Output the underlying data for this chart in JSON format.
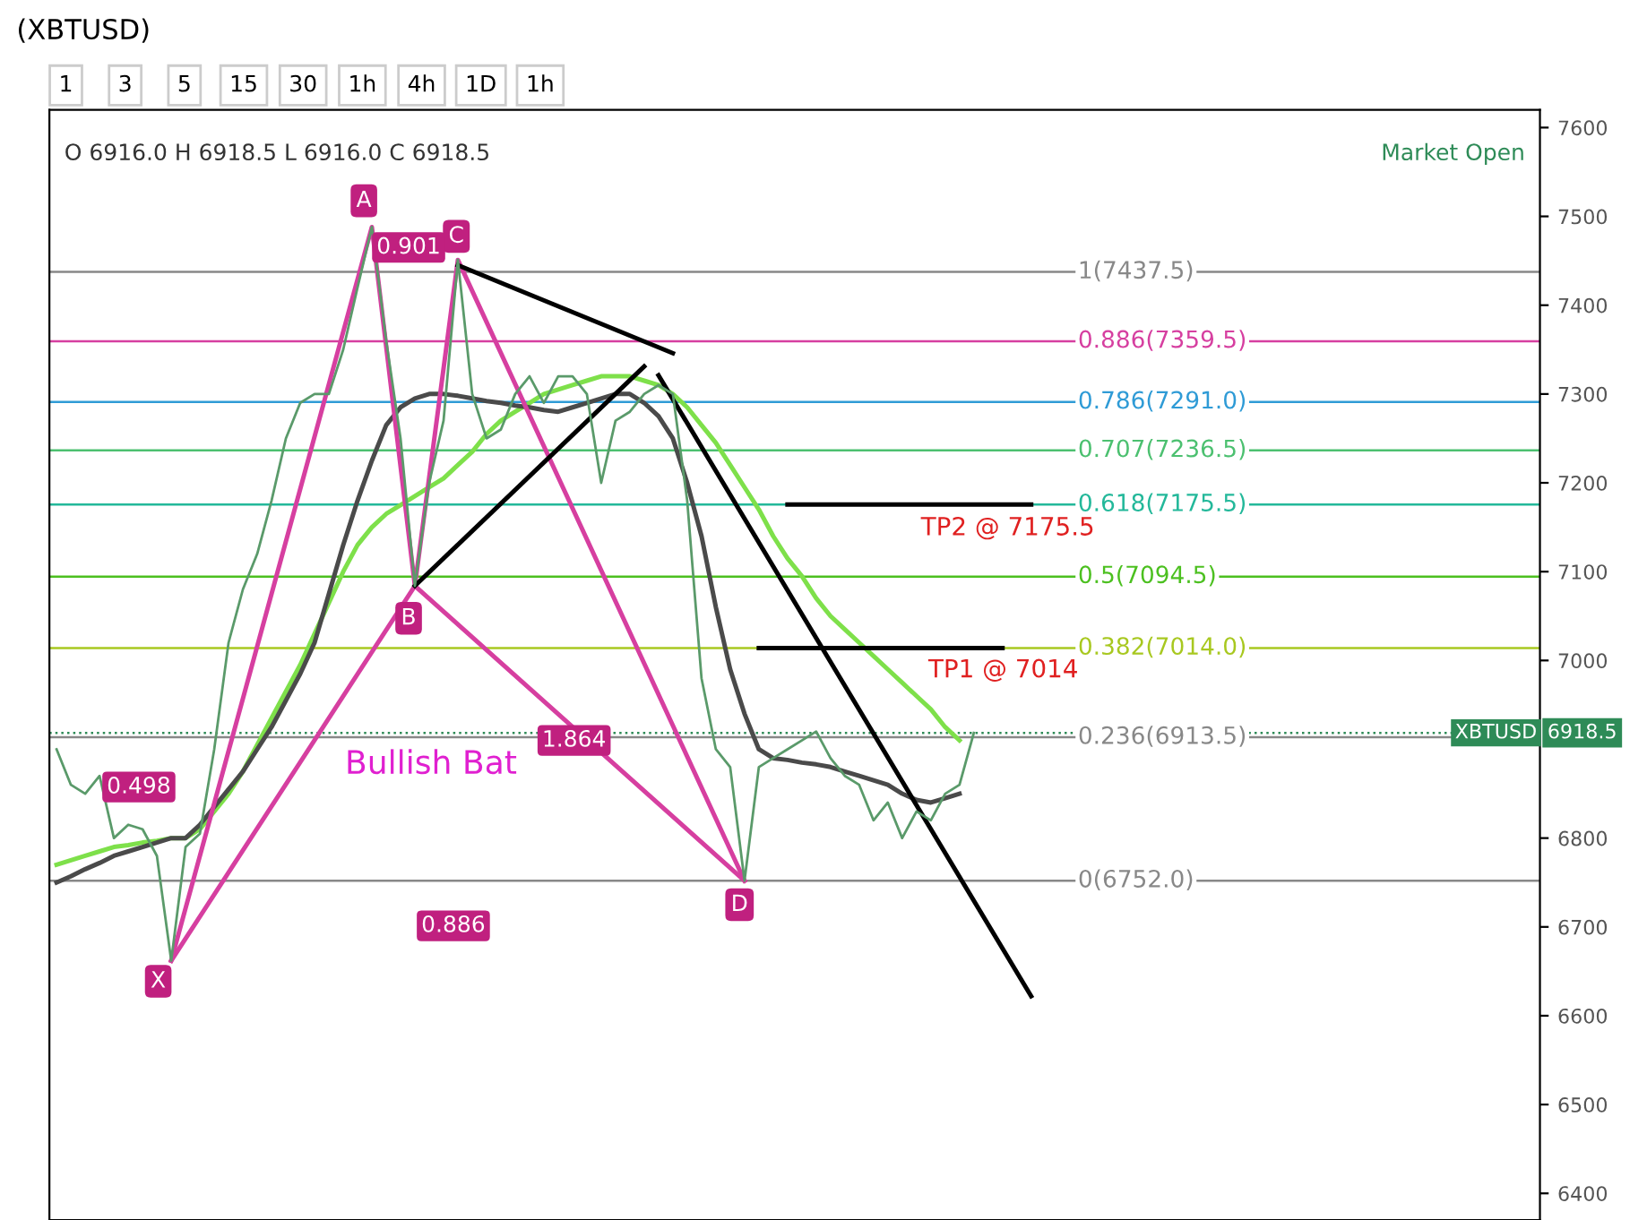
{
  "chart_data": {
    "type": "line",
    "title": "(XBTUSD)",
    "subtitle": "O 6916.0 H 6918.5 L 6916.0 C 6918.5",
    "categories": [
      null,
      null,
      null,
      null,
      null,
      null,
      null,
      null,
      null,
      null,
      null,
      null,
      null,
      null,
      null,
      null,
      null,
      null,
      null,
      null,
      null,
      null,
      null,
      null,
      null,
      null,
      null,
      null,
      null,
      null,
      null,
      null,
      null,
      null,
      null,
      null,
      null,
      null,
      null,
      null,
      null,
      null,
      null,
      null,
      null,
      null,
      null,
      null,
      null,
      null,
      null,
      null,
      null,
      null,
      null,
      null,
      null,
      null,
      null,
      null,
      null,
      null,
      null,
      null,
      null,
      null,
      null,
      null,
      null,
      null,
      null,
      null,
      null,
      null,
      null,
      null,
      null,
      null,
      null,
      null,
      null,
      null,
      null,
      null,
      null,
      null,
      null,
      null,
      null,
      null,
      null,
      null,
      null,
      null,
      null,
      null,
      null,
      null,
      null,
      null,
      null,
      null,
      null,
      null
    ],
    "ylim": [
      6370,
      7620
    ],
    "yticks": [
      6400,
      6500,
      6600,
      6700,
      6800,
      7000,
      7100,
      7200,
      7300,
      7400,
      7500,
      7600
    ],
    "tick_labels": "y",
    "grid": false,
    "legend": false,
    "marker": "none",
    "line_style": "solid",
    "series": [
      {
        "color": "#5a9a6a",
        "values": [
          6900,
          6860,
          6850,
          6870,
          6800,
          6815,
          6810,
          6780,
          6662,
          6790,
          6805,
          6900,
          7020,
          7080,
          7120,
          7180,
          7250,
          7290,
          7300,
          7300,
          7350,
          7420,
          7488,
          7360,
          7250,
          7084,
          7200,
          7270,
          7451,
          7300,
          7250,
          7260,
          7300,
          7320,
          7290,
          7320,
          7320,
          7300,
          7200,
          7270,
          7280,
          7300,
          7310,
          7300,
          7180,
          6980,
          6900,
          6880,
          6752,
          6880,
          6890,
          6900,
          6910,
          6920,
          6890,
          6870,
          6860,
          6820,
          6840,
          6800,
          6830,
          6820,
          6850,
          6860,
          6918.5,
          null,
          null,
          null,
          null,
          null,
          null,
          null,
          null,
          null,
          null,
          null,
          null,
          null,
          null,
          null,
          null,
          null,
          null,
          null,
          null,
          null,
          null,
          null,
          null,
          null,
          null,
          null,
          null,
          null,
          null,
          null,
          null,
          null,
          null,
          null,
          null,
          null,
          null,
          null
        ]
      },
      {
        "color": "#7ee04a",
        "values": [
          6770,
          6775,
          6780,
          6785,
          6790,
          6792,
          6795,
          6797,
          6800,
          6800,
          6810,
          6830,
          6850,
          6875,
          6905,
          6935,
          6965,
          6995,
          7030,
          7065,
          7100,
          7130,
          7150,
          7165,
          7175,
          7185,
          7195,
          7205,
          7220,
          7235,
          7255,
          7270,
          7280,
          7290,
          7300,
          7305,
          7310,
          7315,
          7320,
          7320,
          7320,
          7315,
          7310,
          7300,
          7285,
          7265,
          7245,
          7220,
          7195,
          7170,
          7140,
          7115,
          7095,
          7070,
          7050,
          7035,
          7020,
          7005,
          6990,
          6975,
          6960,
          6945,
          6925,
          6910,
          null,
          null,
          null,
          null,
          null,
          null,
          null,
          null,
          null,
          null,
          null,
          null,
          null,
          null,
          null,
          null,
          null,
          null,
          null,
          null,
          null,
          null,
          null,
          null,
          null,
          null,
          null,
          null,
          null,
          null,
          null,
          null,
          null,
          null,
          null,
          null,
          null,
          null,
          null,
          null
        ]
      },
      {
        "color": "#4a4a4a",
        "values": [
          6750,
          6757,
          6765,
          6772,
          6780,
          6785,
          6790,
          6795,
          6800,
          6800,
          6815,
          6835,
          6855,
          6875,
          6900,
          6925,
          6955,
          6985,
          7020,
          7075,
          7130,
          7180,
          7225,
          7265,
          7285,
          7295,
          7300,
          7300,
          7298,
          7295,
          7292,
          7290,
          7287,
          7285,
          7282,
          7280,
          7285,
          7290,
          7295,
          7300,
          7300,
          7290,
          7275,
          7250,
          7200,
          7140,
          7060,
          6990,
          6940,
          6900,
          6890,
          6888,
          6885,
          6883,
          6880,
          6875,
          6870,
          6865,
          6860,
          6850,
          6843,
          6840,
          6845,
          6850,
          null,
          null,
          null,
          null,
          null,
          null,
          null,
          null,
          null,
          null,
          null,
          null,
          null,
          null,
          null,
          null,
          null,
          null,
          null,
          null,
          null,
          null,
          null,
          null,
          null,
          null,
          null,
          null,
          null,
          null,
          null,
          null,
          null,
          null,
          null,
          null,
          null,
          null,
          null,
          null
        ]
      },
      {
        "color": "#d63fa0",
        "values": [
          null,
          null,
          null,
          null,
          null,
          null,
          null,
          null,
          6662,
          null,
          null,
          null,
          null,
          null,
          null,
          null,
          null,
          null,
          null,
          null,
          null,
          null,
          7488,
          null,
          null,
          7084,
          null,
          null,
          7451,
          null,
          null,
          null,
          null,
          null,
          null,
          null,
          null,
          null,
          null,
          null,
          null,
          null,
          null,
          null,
          null,
          null,
          null,
          null,
          6752,
          null,
          null,
          null,
          null,
          null,
          null,
          null,
          null,
          null,
          null,
          null,
          null,
          null,
          null,
          null,
          null,
          null,
          null,
          null,
          null,
          null,
          null,
          null,
          null,
          null,
          null,
          null,
          null,
          null,
          null,
          null,
          null,
          null,
          null,
          null,
          null,
          null,
          null,
          null,
          null,
          null,
          null,
          null,
          null,
          null,
          null,
          null,
          null,
          null,
          null,
          null,
          null,
          null,
          null,
          null
        ]
      },
      {
        "color": "#d63fa0",
        "values": [
          null,
          null,
          null,
          null,
          null,
          null,
          null,
          null,
          6662,
          null,
          null,
          null,
          null,
          null,
          null,
          null,
          null,
          null,
          null,
          null,
          null,
          null,
          null,
          null,
          null,
          7084,
          null,
          null,
          null,
          null,
          null,
          null,
          null,
          null,
          null,
          null,
          null,
          null,
          null,
          null,
          null,
          null,
          null,
          null,
          null,
          null,
          null,
          null,
          6752,
          null,
          null,
          null,
          null,
          null,
          null,
          null,
          null,
          null,
          null,
          null,
          null,
          null,
          null,
          null,
          null,
          null,
          null,
          null,
          null,
          null,
          null,
          null,
          null,
          null,
          null,
          null,
          null,
          null,
          null,
          null,
          null,
          null,
          null,
          null,
          null,
          null,
          null,
          null,
          null,
          null,
          null,
          null,
          null,
          null,
          null,
          null,
          null,
          null,
          null,
          null,
          null,
          null,
          null,
          null
        ]
      },
      {
        "color": "#000000",
        "values": [
          null,
          null,
          null,
          null,
          null,
          null,
          null,
          null,
          null,
          null,
          null,
          null,
          null,
          null,
          null,
          null,
          null,
          null,
          null,
          null,
          null,
          null,
          null,
          null,
          null,
          null,
          null,
          null,
          7445,
          null,
          null,
          null,
          null,
          null,
          null,
          null,
          null,
          null,
          null,
          null,
          null,
          null,
          null,
          7346,
          null,
          null,
          null,
          null,
          null,
          null,
          null,
          null,
          null,
          null,
          null,
          null,
          null,
          null,
          null,
          null,
          null,
          null,
          null,
          null,
          null,
          null,
          null,
          null,
          null,
          null,
          null,
          null,
          null,
          null,
          null,
          null,
          null,
          null,
          null,
          null,
          null,
          null,
          null,
          null,
          null,
          null,
          null,
          null,
          null,
          null,
          null,
          null,
          null,
          null,
          null,
          null,
          null,
          null,
          null,
          null,
          null,
          null,
          null,
          null
        ]
      },
      {
        "color": "#000000",
        "values": [
          null,
          null,
          null,
          null,
          null,
          null,
          null,
          null,
          null,
          null,
          null,
          null,
          null,
          null,
          null,
          null,
          null,
          null,
          null,
          null,
          null,
          null,
          null,
          null,
          null,
          7084,
          null,
          null,
          null,
          null,
          null,
          null,
          null,
          null,
          null,
          null,
          null,
          null,
          null,
          null,
          null,
          7331,
          null,
          null,
          null,
          null,
          null,
          null,
          null,
          null,
          null,
          null,
          null,
          null,
          null,
          null,
          null,
          null,
          null,
          null,
          null,
          null,
          null,
          null,
          null,
          null,
          null,
          null,
          null,
          null,
          null,
          null,
          null,
          null,
          null,
          null,
          null,
          null,
          null,
          null,
          null,
          null,
          null,
          null,
          null,
          null,
          null,
          null,
          null,
          null,
          null,
          null,
          null,
          null,
          null,
          null,
          null,
          null,
          null,
          null,
          null,
          null,
          null,
          null
        ]
      },
      {
        "color": "#000000",
        "values": [
          null,
          null,
          null,
          null,
          null,
          null,
          null,
          null,
          null,
          null,
          null,
          null,
          null,
          null,
          null,
          null,
          null,
          null,
          null,
          null,
          null,
          null,
          null,
          null,
          null,
          null,
          null,
          null,
          null,
          null,
          null,
          null,
          null,
          null,
          null,
          null,
          null,
          null,
          null,
          null,
          null,
          null,
          7321,
          null,
          null,
          null,
          null,
          null,
          null,
          null,
          null,
          null,
          null,
          null,
          null,
          null,
          null,
          null,
          null,
          null,
          null,
          null,
          null,
          null,
          null,
          null,
          null,
          null,
          6622,
          null,
          null,
          null,
          null,
          null,
          null,
          null,
          null,
          null,
          null,
          null,
          null,
          null,
          null,
          null,
          null,
          null,
          null,
          null,
          null,
          null,
          null,
          null,
          null,
          null,
          null,
          null,
          null,
          null,
          null,
          null,
          null,
          null,
          null,
          null
        ]
      },
      {
        "color": "#000000",
        "values": [
          null,
          null,
          null,
          null,
          null,
          null,
          null,
          null,
          null,
          null,
          null,
          null,
          null,
          null,
          null,
          null,
          null,
          null,
          null,
          null,
          null,
          null,
          null,
          null,
          null,
          null,
          null,
          null,
          null,
          null,
          null,
          null,
          null,
          null,
          null,
          null,
          null,
          null,
          null,
          null,
          null,
          null,
          null,
          null,
          null,
          null,
          null,
          null,
          null,
          null,
          null,
          7175.5,
          null,
          null,
          null,
          null,
          null,
          null,
          null,
          null,
          null,
          null,
          null,
          null,
          null,
          null,
          null,
          null,
          7175.5,
          null,
          null,
          null,
          null,
          null,
          null,
          null,
          null,
          null,
          null,
          null,
          null,
          null,
          null,
          null,
          null,
          null,
          null,
          null,
          null,
          null,
          null,
          null,
          null,
          null,
          null,
          null,
          null,
          null,
          null,
          null,
          null,
          null,
          null,
          null
        ]
      },
      {
        "color": "#000000",
        "values": [
          null,
          null,
          null,
          null,
          null,
          null,
          null,
          null,
          null,
          null,
          null,
          null,
          null,
          null,
          null,
          null,
          null,
          null,
          null,
          null,
          null,
          null,
          null,
          null,
          null,
          null,
          null,
          null,
          null,
          null,
          null,
          null,
          null,
          null,
          null,
          null,
          null,
          null,
          null,
          null,
          null,
          null,
          null,
          null,
          null,
          null,
          null,
          null,
          null,
          7014,
          null,
          null,
          null,
          null,
          null,
          null,
          null,
          null,
          null,
          null,
          null,
          null,
          null,
          null,
          null,
          null,
          7014,
          null,
          null,
          null,
          null,
          null,
          null,
          null,
          null,
          null,
          null,
          null,
          null,
          null,
          null,
          null,
          null,
          null,
          null,
          null,
          null,
          null,
          null,
          null,
          null,
          null,
          null,
          null,
          null,
          null,
          null,
          null,
          null,
          null,
          null,
          null,
          null,
          null
        ]
      }
    ],
    "ref_lines": [
      {
        "axis": "y",
        "value": 7437.5,
        "label": "1(7437.5)",
        "color": "#888888"
      },
      {
        "axis": "y",
        "value": 7359.5,
        "label": "0.886(7359.5)",
        "color": "#d63fa0"
      },
      {
        "axis": "y",
        "value": 7291.0,
        "label": "0.786(7291.0)",
        "color": "#2f9bd6"
      },
      {
        "axis": "y",
        "value": 7236.5,
        "label": "0.707(7236.5)",
        "color": "#4cc070"
      },
      {
        "axis": "y",
        "value": 7175.5,
        "label": "0.618(7175.5)",
        "color": "#23b89a"
      },
      {
        "axis": "y",
        "value": 7094.5,
        "label": "0.5(7094.5)",
        "color": "#4cc020"
      },
      {
        "axis": "y",
        "value": 7014.0,
        "label": "0.382(7014.0)",
        "color": "#a8c820"
      },
      {
        "axis": "y",
        "value": 6913.5,
        "label": "0.236(6913.5)",
        "color": "#888888"
      },
      {
        "axis": "y",
        "value": 6752.0,
        "label": "0(6752.0)",
        "color": "#888888"
      },
      {
        "axis": "y",
        "value": 6918.5,
        "label": "XBTUSD",
        "color": "#2e8b57",
        "line_style": "dotted"
      }
    ],
    "annotations": [
      "X",
      "A",
      "B",
      "C",
      "D",
      "0.901",
      "0.498",
      "0.886",
      "1.864",
      "Bullish Bat",
      "TP2 @ 7175.5",
      "TP1 @ 7014",
      "1",
      "3",
      "5",
      "15",
      "30",
      "1h",
      "4h",
      "1D",
      "1h",
      "Market Open",
      "6918.5"
    ]
  }
}
